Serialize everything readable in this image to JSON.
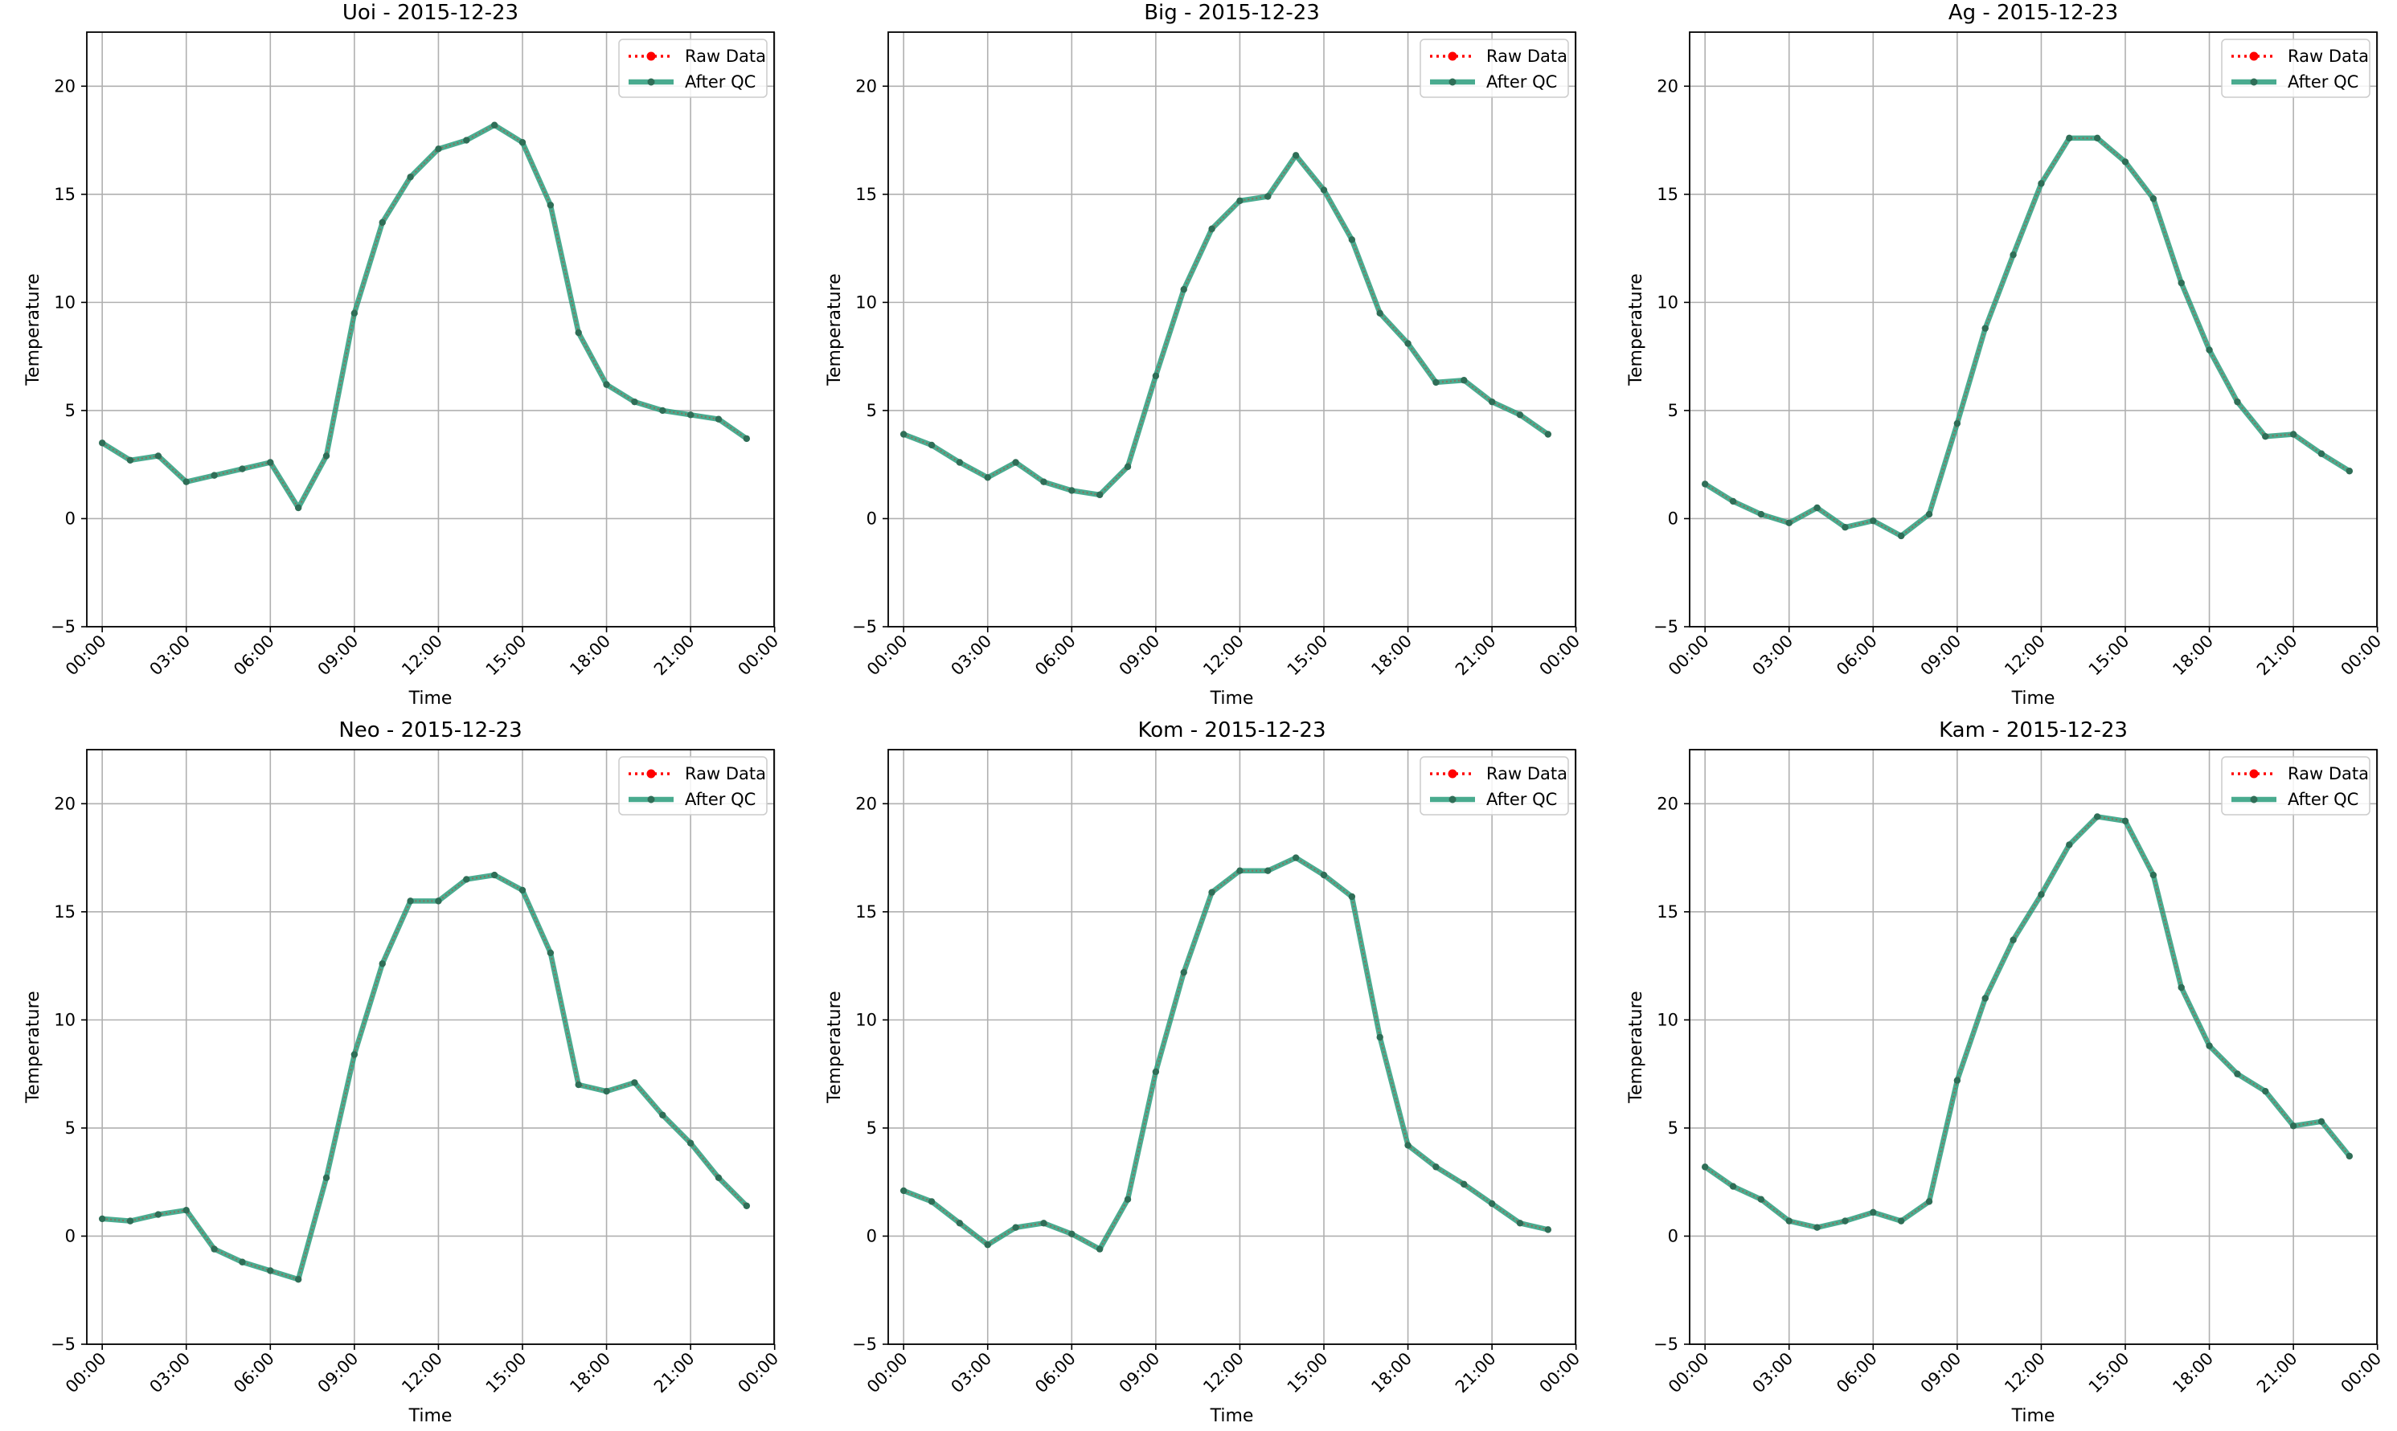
{
  "figure": {
    "hours": [
      "00:00",
      "01:00",
      "02:00",
      "03:00",
      "04:00",
      "05:00",
      "06:00",
      "07:00",
      "08:00",
      "09:00",
      "10:00",
      "11:00",
      "12:00",
      "13:00",
      "14:00",
      "15:00",
      "16:00",
      "17:00",
      "18:00",
      "19:00",
      "20:00",
      "21:00",
      "22:00",
      "23:00"
    ],
    "colors": {
      "raw": "#ff0000",
      "qc": "#2a9d7c",
      "grid": "#b0b0b0",
      "axis": "#000000",
      "marker": "#2f6e57"
    }
  },
  "chart_data": [
    {
      "type": "line",
      "title": "Uoi - 2015-12-23",
      "xlabel": "Time",
      "ylabel": "Temperature",
      "ylim": [
        -5,
        22.5
      ],
      "yticks": [
        "−5",
        "0",
        "5",
        "10",
        "15",
        "20"
      ],
      "xticks": [
        "00:00",
        "03:00",
        "06:00",
        "09:00",
        "12:00",
        "15:00",
        "18:00",
        "21:00",
        "00:00"
      ],
      "legend": {
        "placement": "upper right",
        "entries": [
          "Raw Data",
          "After QC"
        ]
      },
      "grid": true,
      "series": [
        {
          "name": "Raw Data",
          "values": [
            3.5,
            2.7,
            2.9,
            1.7,
            2.0,
            2.3,
            2.6,
            0.5,
            2.9,
            9.5,
            13.7,
            15.8,
            17.1,
            17.5,
            18.2,
            17.4,
            14.5,
            8.6,
            6.2,
            5.4,
            5.0,
            4.8,
            4.6,
            3.7
          ]
        },
        {
          "name": "After QC",
          "values": [
            3.5,
            2.7,
            2.9,
            1.7,
            2.0,
            2.3,
            2.6,
            0.5,
            2.9,
            9.5,
            13.7,
            15.8,
            17.1,
            17.5,
            18.2,
            17.4,
            14.5,
            8.6,
            6.2,
            5.4,
            5.0,
            4.8,
            4.6,
            3.7
          ]
        }
      ]
    },
    {
      "type": "line",
      "title": "Big - 2015-12-23",
      "xlabel": "Time",
      "ylabel": "Temperature",
      "ylim": [
        -5,
        22.5
      ],
      "yticks": [
        "−5",
        "0",
        "5",
        "10",
        "15",
        "20"
      ],
      "xticks": [
        "00:00",
        "03:00",
        "06:00",
        "09:00",
        "12:00",
        "15:00",
        "18:00",
        "21:00",
        "00:00"
      ],
      "legend": {
        "placement": "upper right",
        "entries": [
          "Raw Data",
          "After QC"
        ]
      },
      "grid": true,
      "series": [
        {
          "name": "Raw Data",
          "values": [
            3.9,
            3.4,
            2.6,
            1.9,
            2.6,
            1.7,
            1.3,
            1.1,
            2.4,
            6.6,
            10.6,
            13.4,
            14.7,
            14.9,
            16.8,
            15.2,
            12.9,
            9.5,
            8.1,
            6.3,
            6.4,
            5.4,
            4.8,
            3.9
          ]
        },
        {
          "name": "After QC",
          "values": [
            3.9,
            3.4,
            2.6,
            1.9,
            2.6,
            1.7,
            1.3,
            1.1,
            2.4,
            6.6,
            10.6,
            13.4,
            14.7,
            14.9,
            16.8,
            15.2,
            12.9,
            9.5,
            8.1,
            6.3,
            6.4,
            5.4,
            4.8,
            3.9
          ]
        }
      ]
    },
    {
      "type": "line",
      "title": "Ag - 2015-12-23",
      "xlabel": "Time",
      "ylabel": "Temperature",
      "ylim": [
        -5,
        22.5
      ],
      "yticks": [
        "−5",
        "0",
        "5",
        "10",
        "15",
        "20"
      ],
      "xticks": [
        "00:00",
        "03:00",
        "06:00",
        "09:00",
        "12:00",
        "15:00",
        "18:00",
        "21:00",
        "00:00"
      ],
      "legend": {
        "placement": "upper right",
        "entries": [
          "Raw Data",
          "After QC"
        ]
      },
      "grid": true,
      "series": [
        {
          "name": "Raw Data",
          "values": [
            1.6,
            0.8,
            0.2,
            -0.2,
            0.5,
            -0.4,
            -0.1,
            -0.8,
            0.2,
            4.4,
            8.8,
            12.2,
            15.5,
            17.6,
            17.6,
            16.5,
            14.8,
            10.9,
            7.8,
            5.4,
            3.8,
            3.9,
            3.0,
            2.2
          ]
        },
        {
          "name": "After QC",
          "values": [
            1.6,
            0.8,
            0.2,
            -0.2,
            0.5,
            -0.4,
            -0.1,
            -0.8,
            0.2,
            4.4,
            8.8,
            12.2,
            15.5,
            17.6,
            17.6,
            16.5,
            14.8,
            10.9,
            7.8,
            5.4,
            3.8,
            3.9,
            3.0,
            2.2
          ]
        }
      ]
    },
    {
      "type": "line",
      "title": "Neo - 2015-12-23",
      "xlabel": "Time",
      "ylabel": "Temperature",
      "ylim": [
        -5,
        22.5
      ],
      "yticks": [
        "−5",
        "0",
        "5",
        "10",
        "15",
        "20"
      ],
      "xticks": [
        "00:00",
        "03:00",
        "06:00",
        "09:00",
        "12:00",
        "15:00",
        "18:00",
        "21:00",
        "00:00"
      ],
      "legend": {
        "placement": "upper right",
        "entries": [
          "Raw Data",
          "After QC"
        ]
      },
      "grid": true,
      "series": [
        {
          "name": "Raw Data",
          "values": [
            0.8,
            0.7,
            1.0,
            1.2,
            -0.6,
            -1.2,
            -1.6,
            -2.0,
            2.7,
            8.4,
            12.6,
            15.5,
            15.5,
            16.5,
            16.7,
            16.0,
            13.1,
            7.0,
            6.7,
            7.1,
            5.6,
            4.3,
            2.7,
            1.4
          ]
        },
        {
          "name": "After QC",
          "values": [
            0.8,
            0.7,
            1.0,
            1.2,
            -0.6,
            -1.2,
            -1.6,
            -2.0,
            2.7,
            8.4,
            12.6,
            15.5,
            15.5,
            16.5,
            16.7,
            16.0,
            13.1,
            7.0,
            6.7,
            7.1,
            5.6,
            4.3,
            2.7,
            1.4
          ]
        }
      ]
    },
    {
      "type": "line",
      "title": "Kom - 2015-12-23",
      "xlabel": "Time",
      "ylabel": "Temperature",
      "ylim": [
        -5,
        22.5
      ],
      "yticks": [
        "−5",
        "0",
        "5",
        "10",
        "15",
        "20"
      ],
      "xticks": [
        "00:00",
        "03:00",
        "06:00",
        "09:00",
        "12:00",
        "15:00",
        "18:00",
        "21:00",
        "00:00"
      ],
      "legend": {
        "placement": "upper right",
        "entries": [
          "Raw Data",
          "After QC"
        ]
      },
      "grid": true,
      "series": [
        {
          "name": "Raw Data",
          "values": [
            2.1,
            1.6,
            0.6,
            -0.4,
            0.4,
            0.6,
            0.1,
            -0.6,
            1.7,
            7.6,
            12.2,
            15.9,
            16.9,
            16.9,
            17.5,
            16.7,
            15.7,
            9.2,
            4.2,
            3.2,
            2.4,
            1.5,
            0.6,
            0.3
          ]
        },
        {
          "name": "After QC",
          "values": [
            2.1,
            1.6,
            0.6,
            -0.4,
            0.4,
            0.6,
            0.1,
            -0.6,
            1.7,
            7.6,
            12.2,
            15.9,
            16.9,
            16.9,
            17.5,
            16.7,
            15.7,
            9.2,
            4.2,
            3.2,
            2.4,
            1.5,
            0.6,
            0.3
          ]
        }
      ]
    },
    {
      "type": "line",
      "title": "Kam - 2015-12-23",
      "xlabel": "Time",
      "ylabel": "Temperature",
      "ylim": [
        -5,
        22.5
      ],
      "yticks": [
        "−5",
        "0",
        "5",
        "10",
        "15",
        "20"
      ],
      "xticks": [
        "00:00",
        "03:00",
        "06:00",
        "09:00",
        "12:00",
        "15:00",
        "18:00",
        "21:00",
        "00:00"
      ],
      "legend": {
        "placement": "upper right",
        "entries": [
          "Raw Data",
          "After QC"
        ]
      },
      "grid": true,
      "series": [
        {
          "name": "Raw Data",
          "values": [
            3.2,
            2.3,
            1.7,
            0.7,
            0.4,
            0.7,
            1.1,
            0.7,
            1.6,
            7.2,
            11.0,
            13.7,
            15.8,
            18.1,
            19.4,
            19.2,
            16.7,
            11.5,
            8.8,
            7.5,
            6.7,
            5.1,
            5.3,
            3.7
          ]
        },
        {
          "name": "After QC",
          "values": [
            3.2,
            2.3,
            1.7,
            0.7,
            0.4,
            0.7,
            1.1,
            0.7,
            1.6,
            7.2,
            11.0,
            13.7,
            15.8,
            18.1,
            19.4,
            19.2,
            16.7,
            11.5,
            8.8,
            7.5,
            6.7,
            5.1,
            5.3,
            3.7
          ]
        }
      ]
    }
  ]
}
